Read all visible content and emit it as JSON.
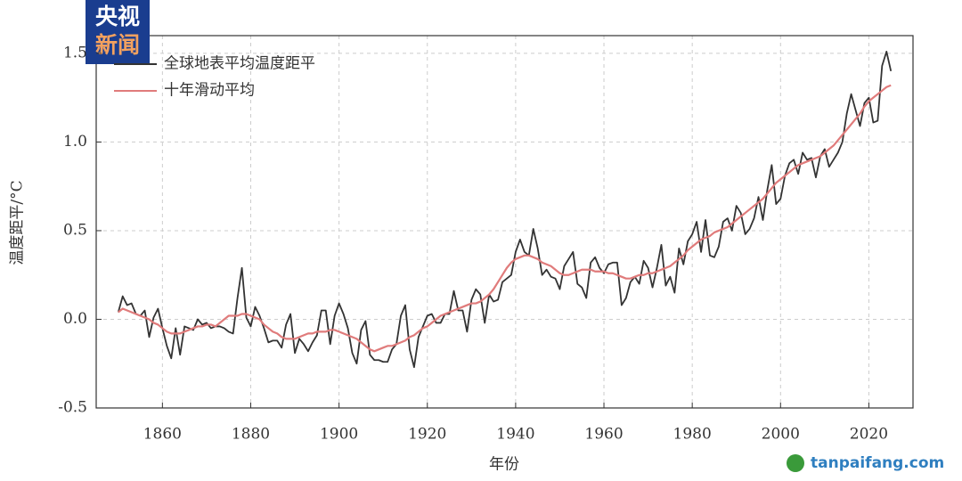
{
  "logo": [
    "央视",
    "新闻"
  ],
  "watermark": "tanpaifang.com",
  "chart_data": {
    "type": "line",
    "x_label": "年份",
    "y_label": "温度距平/°C",
    "x": [
      1850,
      1851,
      1852,
      1853,
      1854,
      1855,
      1856,
      1857,
      1858,
      1859,
      1860,
      1861,
      1862,
      1863,
      1864,
      1865,
      1866,
      1867,
      1868,
      1869,
      1870,
      1871,
      1872,
      1873,
      1874,
      1875,
      1876,
      1877,
      1878,
      1879,
      1880,
      1881,
      1882,
      1883,
      1884,
      1885,
      1886,
      1887,
      1888,
      1889,
      1890,
      1891,
      1892,
      1893,
      1894,
      1895,
      1896,
      1897,
      1898,
      1899,
      1900,
      1901,
      1902,
      1903,
      1904,
      1905,
      1906,
      1907,
      1908,
      1909,
      1910,
      1911,
      1912,
      1913,
      1914,
      1915,
      1916,
      1917,
      1918,
      1919,
      1920,
      1921,
      1922,
      1923,
      1924,
      1925,
      1926,
      1927,
      1928,
      1929,
      1930,
      1931,
      1932,
      1933,
      1934,
      1935,
      1936,
      1937,
      1938,
      1939,
      1940,
      1941,
      1942,
      1943,
      1944,
      1945,
      1946,
      1947,
      1948,
      1949,
      1950,
      1951,
      1952,
      1953,
      1954,
      1955,
      1956,
      1957,
      1958,
      1959,
      1960,
      1961,
      1962,
      1963,
      1964,
      1965,
      1966,
      1967,
      1968,
      1969,
      1970,
      1971,
      1972,
      1973,
      1974,
      1975,
      1976,
      1977,
      1978,
      1979,
      1980,
      1981,
      1982,
      1983,
      1984,
      1985,
      1986,
      1987,
      1988,
      1989,
      1990,
      1991,
      1992,
      1993,
      1994,
      1995,
      1996,
      1997,
      1998,
      1999,
      2000,
      2001,
      2002,
      2003,
      2004,
      2005,
      2006,
      2007,
      2008,
      2009,
      2010,
      2011,
      2012,
      2013,
      2014,
      2015,
      2016,
      2017,
      2018,
      2019,
      2020,
      2021,
      2022,
      2023,
      2024,
      2025
    ],
    "series": [
      {
        "name": "全球地表平均温度距平",
        "color": "#333333",
        "values": [
          0.04,
          0.13,
          0.08,
          0.09,
          0.03,
          0.02,
          0.05,
          -0.1,
          0.01,
          0.06,
          -0.05,
          -0.15,
          -0.22,
          -0.05,
          -0.2,
          -0.04,
          -0.05,
          -0.06,
          0.0,
          -0.03,
          -0.02,
          -0.05,
          -0.04,
          -0.04,
          -0.05,
          -0.07,
          -0.08,
          0.12,
          0.29,
          0.01,
          -0.04,
          0.07,
          0.02,
          -0.05,
          -0.13,
          -0.12,
          -0.12,
          -0.16,
          -0.03,
          0.03,
          -0.19,
          -0.11,
          -0.14,
          -0.18,
          -0.13,
          -0.09,
          0.05,
          0.05,
          -0.14,
          0.02,
          0.09,
          0.03,
          -0.05,
          -0.19,
          -0.25,
          -0.06,
          -0.01,
          -0.2,
          -0.23,
          -0.23,
          -0.24,
          -0.24,
          -0.17,
          -0.14,
          0.02,
          0.08,
          -0.17,
          -0.27,
          -0.1,
          -0.04,
          0.02,
          0.03,
          -0.02,
          -0.02,
          0.03,
          0.03,
          0.16,
          0.05,
          0.05,
          -0.07,
          0.11,
          0.17,
          0.14,
          -0.02,
          0.14,
          0.1,
          0.11,
          0.21,
          0.23,
          0.25,
          0.38,
          0.45,
          0.38,
          0.36,
          0.51,
          0.4,
          0.25,
          0.28,
          0.24,
          0.23,
          0.17,
          0.3,
          0.34,
          0.38,
          0.2,
          0.18,
          0.12,
          0.32,
          0.35,
          0.29,
          0.26,
          0.31,
          0.32,
          0.32,
          0.08,
          0.12,
          0.21,
          0.24,
          0.2,
          0.33,
          0.29,
          0.18,
          0.29,
          0.42,
          0.19,
          0.24,
          0.15,
          0.4,
          0.31,
          0.44,
          0.48,
          0.55,
          0.38,
          0.56,
          0.36,
          0.35,
          0.41,
          0.55,
          0.57,
          0.5,
          0.64,
          0.6,
          0.48,
          0.51,
          0.57,
          0.69,
          0.56,
          0.73,
          0.87,
          0.65,
          0.68,
          0.81,
          0.88,
          0.9,
          0.82,
          0.94,
          0.9,
          0.91,
          0.8,
          0.92,
          0.96,
          0.86,
          0.9,
          0.94,
          1.0,
          1.16,
          1.27,
          1.18,
          1.09,
          1.22,
          1.25,
          1.11,
          1.12,
          1.43,
          1.51,
          1.4
        ]
      },
      {
        "name": "十年滑动平均",
        "color": "#e07b7b",
        "values": [
          0.04,
          0.06,
          0.05,
          0.04,
          0.03,
          0.02,
          0.01,
          0.0,
          -0.02,
          -0.03,
          -0.05,
          -0.07,
          -0.08,
          -0.08,
          -0.08,
          -0.07,
          -0.06,
          -0.05,
          -0.04,
          -0.04,
          -0.03,
          -0.03,
          -0.04,
          -0.02,
          0.0,
          0.02,
          0.02,
          0.02,
          0.03,
          0.03,
          0.02,
          0.01,
          0.0,
          -0.03,
          -0.05,
          -0.07,
          -0.08,
          -0.1,
          -0.11,
          -0.11,
          -0.11,
          -0.1,
          -0.09,
          -0.08,
          -0.08,
          -0.07,
          -0.07,
          -0.07,
          -0.06,
          -0.06,
          -0.07,
          -0.08,
          -0.09,
          -0.1,
          -0.11,
          -0.13,
          -0.15,
          -0.17,
          -0.18,
          -0.17,
          -0.16,
          -0.15,
          -0.15,
          -0.14,
          -0.13,
          -0.12,
          -0.1,
          -0.09,
          -0.07,
          -0.05,
          -0.04,
          -0.02,
          0.0,
          0.02,
          0.03,
          0.04,
          0.05,
          0.06,
          0.07,
          0.08,
          0.09,
          0.09,
          0.1,
          0.12,
          0.14,
          0.17,
          0.21,
          0.25,
          0.29,
          0.32,
          0.34,
          0.35,
          0.36,
          0.36,
          0.35,
          0.34,
          0.32,
          0.31,
          0.3,
          0.28,
          0.26,
          0.25,
          0.25,
          0.26,
          0.27,
          0.28,
          0.28,
          0.28,
          0.27,
          0.27,
          0.27,
          0.26,
          0.26,
          0.25,
          0.24,
          0.23,
          0.23,
          0.24,
          0.25,
          0.25,
          0.26,
          0.26,
          0.27,
          0.28,
          0.29,
          0.3,
          0.32,
          0.34,
          0.36,
          0.39,
          0.41,
          0.43,
          0.45,
          0.46,
          0.47,
          0.49,
          0.5,
          0.51,
          0.52,
          0.54,
          0.56,
          0.58,
          0.6,
          0.62,
          0.64,
          0.66,
          0.68,
          0.71,
          0.74,
          0.77,
          0.79,
          0.81,
          0.83,
          0.85,
          0.87,
          0.88,
          0.89,
          0.9,
          0.91,
          0.92,
          0.94,
          0.96,
          0.98,
          1.01,
          1.04,
          1.07,
          1.1,
          1.13,
          1.16,
          1.2,
          1.23,
          1.25,
          1.27,
          1.29,
          1.31,
          1.32
        ]
      }
    ],
    "xlim": [
      1845,
      2030
    ],
    "xticks": [
      1860,
      1880,
      1900,
      1920,
      1940,
      1960,
      1980,
      2000,
      2020
    ],
    "ylim": [
      -0.5,
      1.6
    ],
    "yticks": [
      -0.5,
      {
        "value": 0,
        "label": "0.0"
      },
      0.5,
      {
        "value": 1,
        "label": "1.0"
      },
      1.5
    ],
    "grid": true,
    "legend": "top-left"
  }
}
